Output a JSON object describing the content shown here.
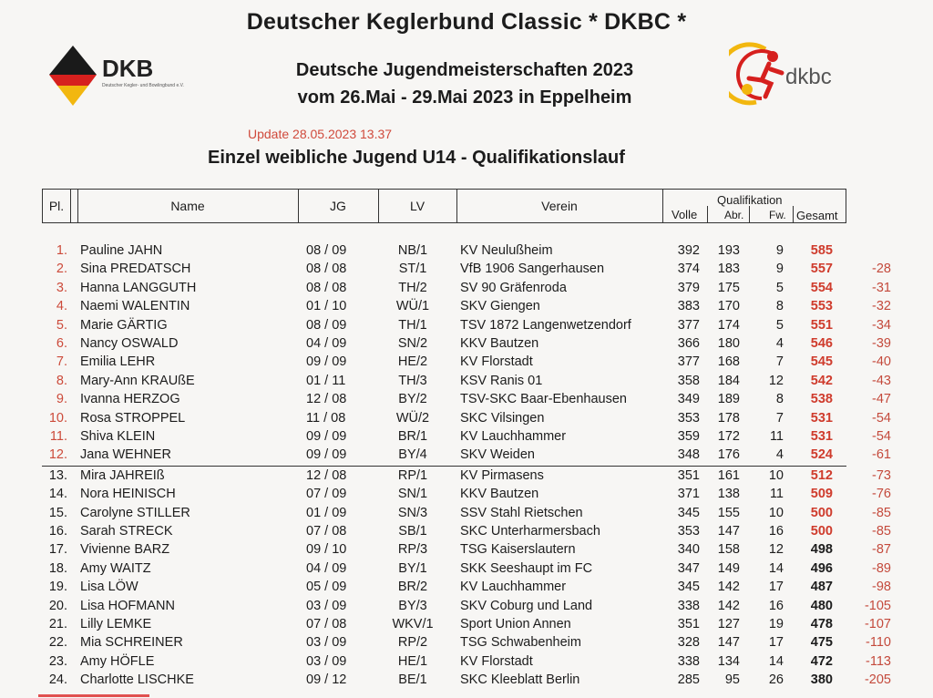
{
  "header": {
    "title": "Deutscher Keglerbund Classic * DKBC *",
    "subtitle_line1": "Deutsche Jugendmeisterschaften 2023",
    "subtitle_line2": "vom 26.Mai - 29.Mai 2023 in Eppelheim",
    "update": "Update 28.05.2023 13.37",
    "event": "Einzel weibliche Jugend U14  -  Qualifikationslauf"
  },
  "logos": {
    "left_text": "DKB",
    "left_subtext": "Deutscher Kegler- und Bowlingbund e.V.",
    "right_text": "dkbc",
    "colors": {
      "black": "#1a1a1a",
      "red": "#d6201e",
      "gold": "#f2b70f"
    }
  },
  "columns": {
    "rank": "Pl.",
    "name": "Name",
    "jg": "JG",
    "lv": "LV",
    "club": "Verein",
    "group": "Qualifikation",
    "volle": "Volle",
    "abr": "Abr.",
    "fw": "Fw.",
    "total": "Gesamt"
  },
  "rows": [
    {
      "rank": "1.",
      "name": "Pauline  JAHN",
      "jg": "08 / 09",
      "lv": "NB/1",
      "club": "KV Neulußheim",
      "volle": "392",
      "abr": "193",
      "fw": "9",
      "total": "585",
      "diff": ""
    },
    {
      "rank": "2.",
      "name": "Sina PREDATSCH",
      "jg": "08 / 08",
      "lv": "ST/1",
      "club": "VfB 1906 Sangerhausen",
      "volle": "374",
      "abr": "183",
      "fw": "9",
      "total": "557",
      "diff": "-28"
    },
    {
      "rank": "3.",
      "name": "Hanna LANGGUTH",
      "jg": "08 / 08",
      "lv": "TH/2",
      "club": "SV 90 Gräfenroda",
      "volle": "379",
      "abr": "175",
      "fw": "5",
      "total": "554",
      "diff": "-31"
    },
    {
      "rank": "4.",
      "name": "Naemi WALENTIN",
      "jg": "01 / 10",
      "lv": "WÜ/1",
      "club": "SKV Giengen",
      "volle": "383",
      "abr": "170",
      "fw": "8",
      "total": "553",
      "diff": "-32"
    },
    {
      "rank": "5.",
      "name": "Marie GÄRTIG",
      "jg": "08 / 09",
      "lv": "TH/1",
      "club": "TSV 1872 Langenwetzendorf",
      "volle": "377",
      "abr": "174",
      "fw": "5",
      "total": "551",
      "diff": "-34"
    },
    {
      "rank": "6.",
      "name": "Nancy OSWALD",
      "jg": "04 / 09",
      "lv": "SN/2",
      "club": "KKV Bautzen",
      "volle": "366",
      "abr": "180",
      "fw": "4",
      "total": "546",
      "diff": "-39"
    },
    {
      "rank": "7.",
      "name": "Emilia LEHR",
      "jg": "09 / 09",
      "lv": "HE/2",
      "club": "KV Florstadt",
      "volle": "377",
      "abr": "168",
      "fw": "7",
      "total": "545",
      "diff": "-40"
    },
    {
      "rank": "8.",
      "name": "Mary-Ann KRAUßE",
      "jg": "01 / 11",
      "lv": "TH/3",
      "club": "KSV Ranis 01",
      "volle": "358",
      "abr": "184",
      "fw": "12",
      "total": "542",
      "diff": "-43"
    },
    {
      "rank": "9.",
      "name": "Ivanna HERZOG",
      "jg": "12 / 08",
      "lv": "BY/2",
      "club": "TSV-SKC Baar-Ebenhausen",
      "volle": "349",
      "abr": "189",
      "fw": "8",
      "total": "538",
      "diff": "-47"
    },
    {
      "rank": "10.",
      "name": "Rosa STROPPEL",
      "jg": "11 / 08",
      "lv": "WÜ/2",
      "club": "SKC Vilsingen",
      "volle": "353",
      "abr": "178",
      "fw": "7",
      "total": "531",
      "diff": "-54"
    },
    {
      "rank": "11.",
      "name": "Shiva KLEIN",
      "jg": "09 / 09",
      "lv": "BR/1",
      "club": "KV Lauchhammer",
      "volle": "359",
      "abr": "172",
      "fw": "11",
      "total": "531",
      "diff": "-54"
    },
    {
      "rank": "12.",
      "name": "Jana WEHNER",
      "jg": "09 / 09",
      "lv": "BY/4",
      "club": "SKV Weiden",
      "volle": "348",
      "abr": "176",
      "fw": "4",
      "total": "524",
      "diff": "-61"
    },
    {
      "rank": "13.",
      "name": "Mira JAHREIß",
      "jg": "12 / 08",
      "lv": "RP/1",
      "club": "KV Pirmasens",
      "volle": "351",
      "abr": "161",
      "fw": "10",
      "total": "512",
      "diff": "-73"
    },
    {
      "rank": "14.",
      "name": "Nora HEINISCH",
      "jg": "07 / 09",
      "lv": "SN/1",
      "club": "KKV Bautzen",
      "volle": "371",
      "abr": "138",
      "fw": "11",
      "total": "509",
      "diff": "-76"
    },
    {
      "rank": "15.",
      "name": "Carolyne STILLER",
      "jg": "01 / 09",
      "lv": "SN/3",
      "club": "SSV Stahl Rietschen",
      "volle": "345",
      "abr": "155",
      "fw": "10",
      "total": "500",
      "diff": "-85"
    },
    {
      "rank": "16.",
      "name": "Sarah STRECK",
      "jg": "07 / 08",
      "lv": "SB/1",
      "club": "SKC Unterharmersbach",
      "volle": "353",
      "abr": "147",
      "fw": "16",
      "total": "500",
      "diff": "-85"
    },
    {
      "rank": "17.",
      "name": "Vivienne BARZ",
      "jg": "09 / 10",
      "lv": "RP/3",
      "club": "TSG Kaiserslautern",
      "volle": "340",
      "abr": "158",
      "fw": "12",
      "total": "498",
      "diff": "-87"
    },
    {
      "rank": "18.",
      "name": "Amy WAITZ",
      "jg": "04 / 09",
      "lv": "BY/1",
      "club": "SKK Seeshaupt im FC",
      "volle": "347",
      "abr": "149",
      "fw": "14",
      "total": "496",
      "diff": "-89"
    },
    {
      "rank": "19.",
      "name": "Lisa LÖW",
      "jg": "05 / 09",
      "lv": "BR/2",
      "club": "KV Lauchhammer",
      "volle": "345",
      "abr": "142",
      "fw": "17",
      "total": "487",
      "diff": "-98"
    },
    {
      "rank": "20.",
      "name": "Lisa HOFMANN",
      "jg": "03 / 09",
      "lv": "BY/3",
      "club": "SKV Coburg und Land",
      "volle": "338",
      "abr": "142",
      "fw": "16",
      "total": "480",
      "diff": "-105"
    },
    {
      "rank": "21.",
      "name": "Lilly LEMKE",
      "jg": "07 / 08",
      "lv": "WKV/1",
      "club": "Sport Union Annen",
      "volle": "351",
      "abr": "127",
      "fw": "19",
      "total": "478",
      "diff": "-107"
    },
    {
      "rank": "22.",
      "name": "Mia SCHREINER",
      "jg": "03 / 09",
      "lv": "RP/2",
      "club": "TSG Schwabenheim",
      "volle": "328",
      "abr": "147",
      "fw": "17",
      "total": "475",
      "diff": "-110"
    },
    {
      "rank": "23.",
      "name": "Amy HÖFLE",
      "jg": "03 / 09",
      "lv": "HE/1",
      "club": "KV Florstadt",
      "volle": "338",
      "abr": "134",
      "fw": "14",
      "total": "472",
      "diff": "-113"
    },
    {
      "rank": "24.",
      "name": "Charlotte LISCHKE",
      "jg": "09 / 12",
      "lv": "BE/1",
      "club": "SKC Kleeblatt Berlin",
      "volle": "285",
      "abr": "95",
      "fw": "26",
      "total": "380",
      "diff": "-205"
    }
  ]
}
